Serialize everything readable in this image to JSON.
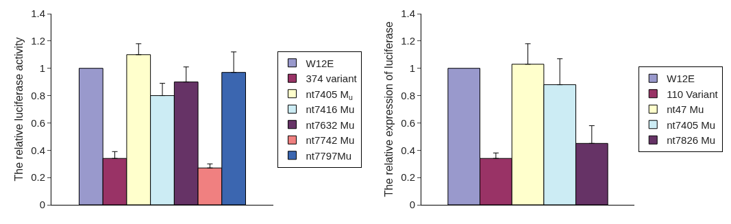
{
  "chart_data": [
    {
      "type": "bar",
      "ylabel": "The relative luciferase activity",
      "categories": [
        null
      ],
      "ylim": [
        0,
        1.4
      ],
      "yticks": [
        0,
        0.2,
        0.4,
        0.6,
        0.8,
        1,
        1.2,
        1.4
      ],
      "grid": false,
      "legend": "right",
      "series": [
        {
          "name": "W12E",
          "color": "#9999cc",
          "values": [
            1.0
          ]
        },
        {
          "name": "374 variant",
          "color": "#993366",
          "values": [
            0.34
          ],
          "errors": [
            [
              0.34,
              0.39
            ]
          ]
        },
        {
          "name": "nt7405 M$_{u}$",
          "color": "#ffffcc",
          "values": [
            1.1
          ],
          "errors": [
            [
              1.1,
              1.18
            ]
          ]
        },
        {
          "name": "nt7416 Mu",
          "color": "#ccecf4",
          "values": [
            0.8
          ],
          "errors": [
            [
              0.8,
              0.89
            ]
          ]
        },
        {
          "name": "nt7632 Mu",
          "color": "#663366",
          "values": [
            0.9
          ],
          "errors": [
            [
              0.9,
              1.01
            ]
          ]
        },
        {
          "name": "nt7742 Mu",
          "color": "#f08080",
          "values": [
            0.27
          ],
          "errors": [
            [
              0.27,
              0.3
            ]
          ]
        },
        {
          "name": "nt7797Mu",
          "color": "#3b66b0",
          "values": [
            0.97
          ],
          "errors": [
            [
              0.97,
              1.12
            ]
          ]
        }
      ]
    },
    {
      "type": "bar",
      "ylabel": "The relative expression of luciferase",
      "categories": [
        null
      ],
      "ylim": [
        0,
        1.4
      ],
      "yticks": [
        0,
        0.2,
        0.4,
        0.6,
        0.8,
        1,
        1.2,
        1.4
      ],
      "grid": false,
      "legend": "right",
      "series": [
        {
          "name": "W12E",
          "color": "#9999cc",
          "values": [
            1.0
          ]
        },
        {
          "name": "110 Variant",
          "color": "#993366",
          "values": [
            0.34
          ],
          "errors": [
            [
              0.34,
              0.38
            ]
          ]
        },
        {
          "name": "nt47 Mu",
          "color": "#ffffcc",
          "values": [
            1.03
          ],
          "errors": [
            [
              1.03,
              1.18
            ]
          ]
        },
        {
          "name": "nt7405 Mu",
          "color": "#ccecf4",
          "values": [
            0.88
          ],
          "errors": [
            [
              0.88,
              1.07
            ]
          ]
        },
        {
          "name": "nt7826 Mu",
          "color": "#663366",
          "values": [
            0.45
          ],
          "errors": [
            [
              0.45,
              0.58
            ]
          ]
        }
      ]
    }
  ]
}
